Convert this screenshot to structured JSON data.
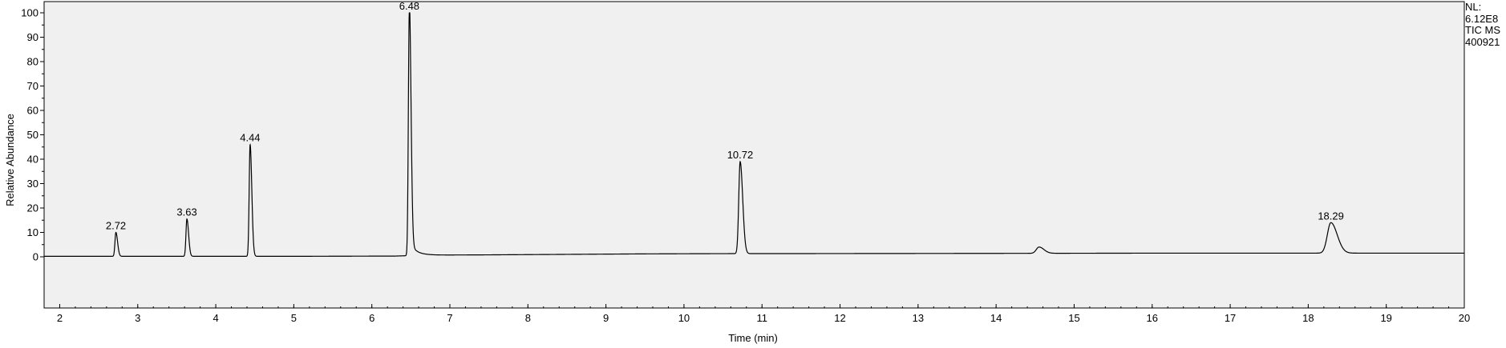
{
  "chart_data": {
    "type": "line",
    "xlabel": "Time (min)",
    "ylabel": "Relative Abundance",
    "xlim": [
      1.8,
      20
    ],
    "ylim": [
      0,
      100
    ],
    "x_ticks": [
      2,
      3,
      4,
      5,
      6,
      7,
      8,
      9,
      10,
      11,
      12,
      13,
      14,
      15,
      16,
      17,
      18,
      19,
      20
    ],
    "y_ticks": [
      0,
      10,
      20,
      30,
      40,
      50,
      60,
      70,
      80,
      90,
      100
    ],
    "grid": false,
    "info_lines": [
      "NL:",
      "6.12E8",
      "TIC  MS",
      "400921"
    ],
    "baseline": [
      [
        1.8,
        0.2
      ],
      [
        2.6,
        0.2
      ],
      [
        5.0,
        0.2
      ],
      [
        6.3,
        0.3
      ],
      [
        6.7,
        0.7
      ],
      [
        7.5,
        0.8
      ],
      [
        8.5,
        1.0
      ],
      [
        9.5,
        1.2
      ],
      [
        10.5,
        1.3
      ],
      [
        11.0,
        1.3
      ],
      [
        14.0,
        1.4
      ],
      [
        16.0,
        1.5
      ],
      [
        18.0,
        1.5
      ],
      [
        20.0,
        1.5
      ]
    ],
    "peaks": [
      {
        "label": "2.72",
        "x": 2.72,
        "y": 10
      },
      {
        "label": "3.63",
        "x": 3.63,
        "y": 15.5
      },
      {
        "label": "4.44",
        "x": 4.44,
        "y": 46
      },
      {
        "label": "6.48",
        "x": 6.48,
        "y": 100
      },
      {
        "label": "10.72",
        "x": 10.72,
        "y": 39
      },
      {
        "label": "",
        "x": 14.55,
        "y": 4
      },
      {
        "label": "18.29",
        "x": 18.29,
        "y": 14
      }
    ]
  }
}
